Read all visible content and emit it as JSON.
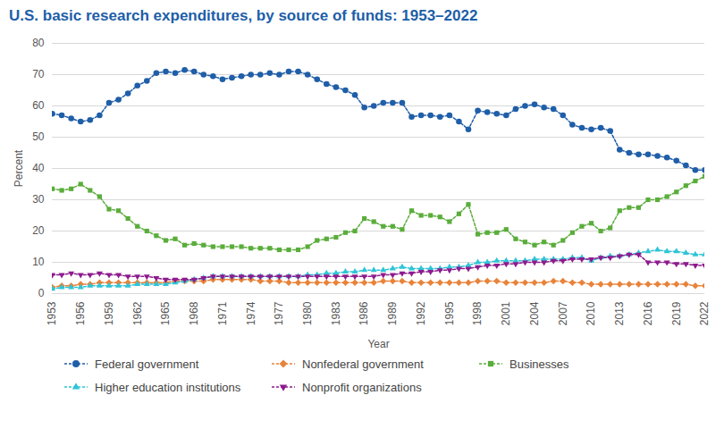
{
  "chart_data": {
    "type": "line",
    "title": "U.S. basic research expenditures, by source of funds: 1953–2022",
    "x_label": "Year",
    "y_label": "Percent",
    "x": [
      1953,
      1954,
      1955,
      1956,
      1957,
      1958,
      1959,
      1960,
      1961,
      1962,
      1963,
      1964,
      1965,
      1966,
      1967,
      1968,
      1969,
      1970,
      1971,
      1972,
      1973,
      1974,
      1975,
      1976,
      1977,
      1978,
      1979,
      1980,
      1981,
      1982,
      1983,
      1984,
      1985,
      1986,
      1987,
      1988,
      1989,
      1990,
      1991,
      1992,
      1993,
      1994,
      1995,
      1996,
      1997,
      1998,
      1999,
      2000,
      2001,
      2002,
      2003,
      2004,
      2005,
      2006,
      2007,
      2008,
      2009,
      2010,
      2011,
      2012,
      2013,
      2014,
      2015,
      2016,
      2017,
      2018,
      2019,
      2020,
      2021,
      2022
    ],
    "xlim": [
      1953,
      2022
    ],
    "xticks": [
      1953,
      1956,
      1959,
      1962,
      1965,
      1968,
      1971,
      1974,
      1977,
      1980,
      1983,
      1986,
      1989,
      1992,
      1995,
      1998,
      2001,
      2004,
      2007,
      2010,
      2013,
      2016,
      2019,
      2022
    ],
    "ylim": [
      0,
      80
    ],
    "yticks": [
      0,
      10,
      20,
      30,
      40,
      50,
      60,
      70,
      80
    ],
    "grid": true,
    "legend": "bottom",
    "series": [
      {
        "name": "Federal government",
        "color": "#1f5ea8",
        "marker": "circle",
        "line_style": "dashed",
        "values": [
          57.5,
          57,
          56,
          55,
          55.5,
          57,
          61,
          62,
          64,
          66.5,
          68,
          70.5,
          71,
          70.5,
          71.5,
          71,
          70,
          69.5,
          68.5,
          69,
          69.5,
          70,
          70,
          70.5,
          70,
          71,
          71,
          70,
          68.5,
          67,
          66,
          65,
          63.5,
          59.5,
          60,
          61,
          61,
          61,
          56.5,
          57,
          57,
          56.5,
          57,
          55,
          52.5,
          58.5,
          58,
          57.5,
          57,
          59,
          60,
          60.5,
          59.5,
          59,
          57,
          54,
          53,
          52.5,
          53,
          52,
          46,
          45,
          44.5,
          44.5,
          44,
          43.5,
          42.5,
          41,
          39.5,
          39.5
        ]
      },
      {
        "name": "Nonfederal government",
        "color": "#e8833a",
        "marker": "diamond",
        "line_style": "dashed",
        "values": [
          2,
          2.5,
          2.5,
          3,
          3,
          3.5,
          3.5,
          3.5,
          3.5,
          3.5,
          3.5,
          3.5,
          3.5,
          4,
          4,
          4,
          4,
          4.5,
          4.5,
          4.5,
          4.5,
          4.5,
          4,
          4,
          4,
          3.5,
          3.5,
          3.5,
          3.5,
          3.5,
          3.5,
          3.5,
          3.5,
          3.5,
          3.5,
          4,
          4,
          4,
          3.5,
          3.5,
          3.5,
          3.5,
          3.5,
          3.5,
          3.5,
          4,
          4,
          4,
          3.5,
          3.5,
          3.5,
          3.5,
          3.5,
          4,
          4,
          3.5,
          3.5,
          3,
          3,
          3,
          3,
          3,
          3,
          3,
          3,
          3,
          3,
          3,
          2.5,
          2.5
        ]
      },
      {
        "name": "Businesses",
        "color": "#5aad3b",
        "marker": "square",
        "line_style": "dashed",
        "values": [
          33.5,
          33,
          33.5,
          35,
          33,
          31,
          27,
          26.5,
          24,
          21.5,
          20,
          18.5,
          17,
          17.5,
          15.5,
          16,
          15.5,
          15,
          15,
          15,
          15,
          14.5,
          14.5,
          14.5,
          14,
          14,
          14,
          15,
          17,
          17.5,
          18,
          19.5,
          20,
          24,
          23,
          21.5,
          21.5,
          20.5,
          26.5,
          25,
          25,
          24.5,
          23,
          25.5,
          28.5,
          19,
          19.5,
          19.5,
          20.5,
          17.5,
          16.5,
          15.5,
          16.5,
          15.5,
          17,
          19.5,
          21.5,
          22.5,
          20,
          21,
          26.5,
          27.5,
          27.5,
          30,
          30,
          31,
          32.5,
          34.5,
          36,
          37.5
        ]
      },
      {
        "name": "Higher education institutions",
        "color": "#2ec4d6",
        "marker": "triangle-up",
        "line_style": "dashed",
        "values": [
          1.5,
          2,
          2,
          2,
          2.5,
          2.5,
          2.5,
          2.5,
          2.5,
          3,
          3,
          3,
          3,
          3.5,
          4,
          4.5,
          5,
          5.5,
          5.5,
          5.5,
          5.5,
          5.5,
          5.5,
          5.5,
          5.5,
          5.5,
          5.5,
          6,
          6,
          6.5,
          6.5,
          7,
          7,
          7.5,
          7.5,
          7.5,
          8,
          8.5,
          8,
          8,
          8,
          8,
          8.5,
          8.5,
          9,
          10,
          10,
          10.5,
          10.5,
          10.5,
          10.5,
          11,
          11,
          11,
          11,
          11.5,
          11.5,
          10.5,
          11.5,
          12,
          12,
          12.5,
          13,
          13.5,
          14,
          13.5,
          13.5,
          13,
          12.5,
          12.5
        ]
      },
      {
        "name": "Nonprofit organizations",
        "color": "#8e1a8e",
        "marker": "triangle-down",
        "line_style": "dashed",
        "values": [
          6,
          6,
          6.5,
          6,
          6,
          6.5,
          6,
          6,
          5.5,
          5.5,
          5.5,
          5,
          4.5,
          4.5,
          4.5,
          4.5,
          5,
          5.5,
          5.5,
          5.5,
          5.5,
          5.5,
          5.5,
          5.5,
          5.5,
          5.5,
          5.5,
          5.5,
          5.5,
          5.5,
          5.5,
          5.5,
          5.5,
          5.5,
          5.5,
          6,
          6,
          6.5,
          6.5,
          7,
          7,
          7.5,
          7.5,
          8,
          8,
          8.5,
          9,
          9,
          9.5,
          9.5,
          10,
          10,
          10,
          10.5,
          10.5,
          11,
          11,
          11,
          11.5,
          11.5,
          12,
          12.5,
          12.5,
          10,
          10,
          10,
          9.5,
          9.5,
          9,
          9
        ]
      }
    ]
  }
}
